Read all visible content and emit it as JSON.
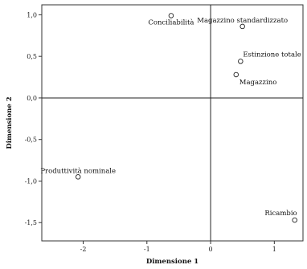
{
  "chart_data": {
    "type": "scatter",
    "xlabel": "Dimensione 1",
    "ylabel": "Dimensione 2",
    "xlim": [
      -2.65,
      1.45
    ],
    "ylim": [
      -1.72,
      1.12
    ],
    "xticks": [
      {
        "value": -2,
        "label": "-2"
      },
      {
        "value": -1,
        "label": "-1"
      },
      {
        "value": 0,
        "label": "0"
      },
      {
        "value": 1,
        "label": "1"
      }
    ],
    "yticks": [
      {
        "value": 1.0,
        "label": "1,0"
      },
      {
        "value": 0.5,
        "label": "0,5"
      },
      {
        "value": 0.0,
        "label": "0,0"
      },
      {
        "value": -0.5,
        "label": "-0,5"
      },
      {
        "value": -1.0,
        "label": "-1,0"
      },
      {
        "value": -1.5,
        "label": "-1,5"
      }
    ],
    "reference_lines": {
      "x": 0,
      "y": 0
    },
    "points": [
      {
        "label": "Conciliabilità",
        "x": -0.62,
        "y": 0.99,
        "label_pos": "below"
      },
      {
        "label": "Magazzino standardizzato",
        "x": 0.5,
        "y": 0.86,
        "label_pos": "above"
      },
      {
        "label": "Estinzione totale",
        "x": 0.47,
        "y": 0.44,
        "label_pos": "above-right"
      },
      {
        "label": "Magazzino",
        "x": 0.4,
        "y": 0.28,
        "label_pos": "below-right"
      },
      {
        "label": "Produttività nominale",
        "x": -2.08,
        "y": -0.95,
        "label_pos": "above"
      },
      {
        "label": "Ricambio",
        "x": 1.32,
        "y": -1.47,
        "label_pos": "above-left"
      }
    ],
    "grid": false,
    "legend": "none"
  }
}
